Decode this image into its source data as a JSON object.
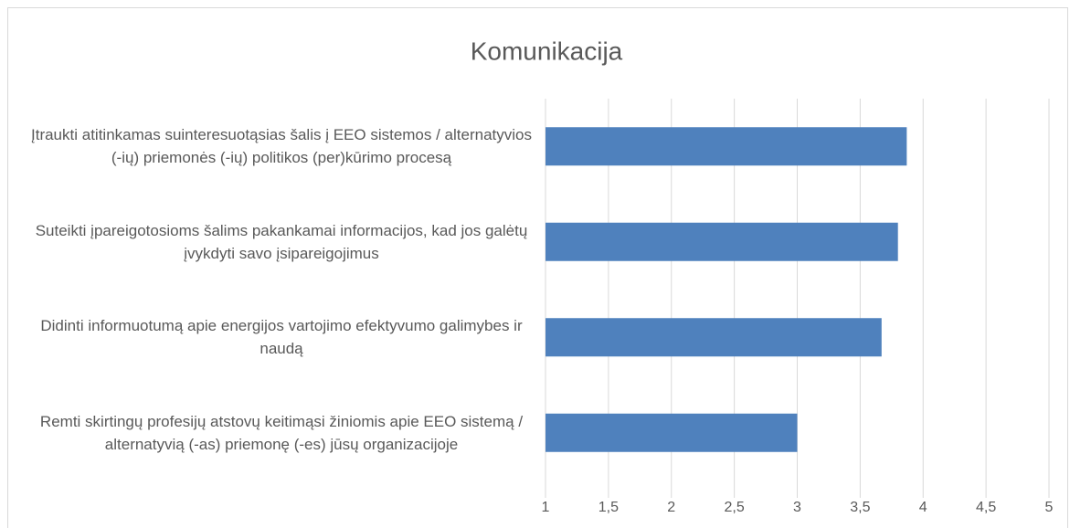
{
  "chart_data": {
    "type": "barh",
    "title": "Komunikacija",
    "categories": [
      "Įtraukti atitinkamas suinteresuotąsias šalis į EEO sistemos / alternatyvios (-ių) priemonės (-ių) politikos (per)kūrimo procesą",
      "Suteikti įpareigotosioms šalims pakankamai informacijos, kad jos galėtų įvykdyti savo įsipareigojimus",
      "Didinti informuotumą apie energijos vartojimo efektyvumo galimybes ir naudą",
      "Remti skirtingų profesijų atstovų keitimąsi žiniomis apie EEO sistemą / alternatyvią (-as) priemonę (-es) jūsų organizacijoje"
    ],
    "values": [
      3.87,
      3.8,
      3.67,
      3.0
    ],
    "color": "#4f81bd",
    "xlim": [
      1,
      5
    ],
    "xticks": [
      1,
      {
        "value": 1.5,
        "label": "1,5"
      },
      2,
      {
        "value": 2.5,
        "label": "2,5"
      },
      3,
      {
        "value": 3.5,
        "label": "3,5"
      },
      4,
      {
        "value": 4.5,
        "label": "4,5"
      },
      5
    ],
    "grid": true
  }
}
